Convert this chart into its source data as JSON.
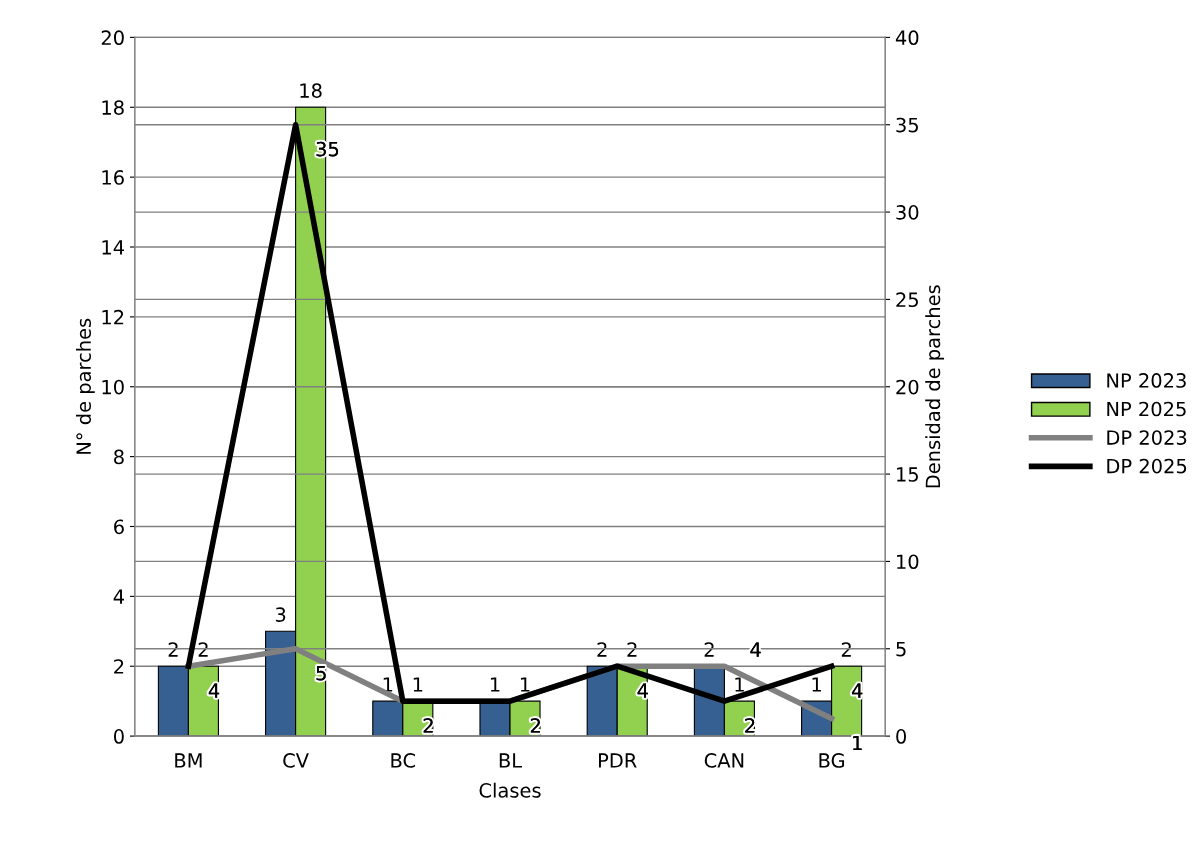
{
  "chart_data": {
    "type": "bar",
    "xlabel": "Clases",
    "ylabel": "N° de parches",
    "y2label": "Densidad de parches",
    "categories": [
      "BM",
      "CV",
      "BC",
      "BL",
      "PDR",
      "CAN",
      "BG"
    ],
    "series": [
      {
        "name": "NP 2023",
        "color": "#366092",
        "values": [
          2,
          3,
          1,
          1,
          2,
          2,
          1
        ]
      },
      {
        "name": "NP 2025",
        "color": "#92d050",
        "values": [
          2,
          18,
          1,
          1,
          2,
          1,
          2
        ]
      },
      {
        "name": "DP 2023",
        "type": "line",
        "axis": "y2",
        "color": "#808080",
        "values": [
          4,
          5,
          2,
          2,
          4,
          4,
          1
        ]
      },
      {
        "name": "DP 2025",
        "type": "line",
        "axis": "y2",
        "color": "#000000",
        "values": [
          4,
          35,
          2,
          2,
          4,
          2,
          4
        ],
        "value_labels": [
          null,
          "35",
          null,
          null,
          null,
          "2",
          "4"
        ]
      }
    ],
    "ylim": [
      0,
      20
    ],
    "yticks": [
      0,
      2,
      4,
      6,
      8,
      10,
      12,
      14,
      16,
      18,
      20
    ],
    "y2lim": [
      0,
      40
    ],
    "y2ticks": [
      0,
      5,
      10,
      15,
      20,
      25,
      30,
      35,
      40
    ],
    "grid": "y",
    "legend": "right",
    "data_labels": true,
    "marker": "none",
    "line_style": "solid"
  }
}
